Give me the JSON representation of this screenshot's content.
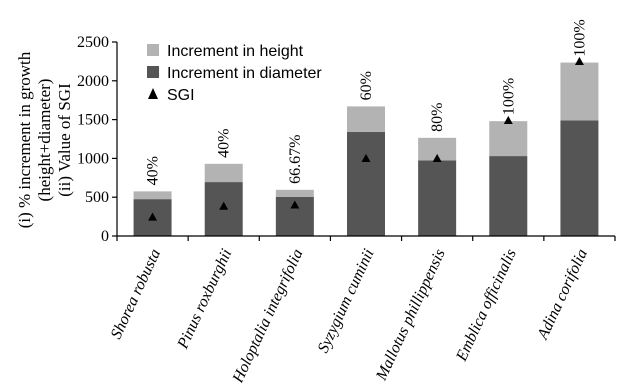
{
  "chart_data": {
    "type": "bar",
    "stacked": true,
    "categories": [
      "Shorea robusta",
      "Pinus roxburghii",
      "Holoptalia integrifolia",
      "Syzygium cuminii",
      "Mallotus phillippensis",
      "Emblica officinalis",
      "Adina corifolia"
    ],
    "series": [
      {
        "name": "Increment in diameter",
        "type": "bar",
        "color": "#555555",
        "values": [
          475,
          695,
          505,
          1340,
          975,
          1030,
          1490
        ]
      },
      {
        "name": "Increment in height",
        "type": "bar",
        "color": "#b3b3b3",
        "values": [
          100,
          235,
          90,
          330,
          290,
          450,
          745
        ]
      },
      {
        "name": "SGI",
        "type": "scatter",
        "marker": "triangle",
        "color": "#000000",
        "values": [
          245,
          385,
          400,
          1000,
          1000,
          1490,
          2250
        ]
      }
    ],
    "bar_top_labels": [
      "40%",
      "40%",
      "66.67%",
      "60%",
      "80%",
      "100%",
      "100%"
    ],
    "ylabel_lines": [
      "(i) % increment in growth",
      "(height+diameter)",
      "(ii) Value of SGI"
    ],
    "yticks": [
      "0",
      "500",
      "1000",
      "1500",
      "2000",
      "2500"
    ],
    "ylim": [
      0,
      2500
    ],
    "legend_order": [
      "Increment in height",
      "Increment in diameter",
      "SGI"
    ],
    "legend_position": "top-left",
    "grid": false
  }
}
